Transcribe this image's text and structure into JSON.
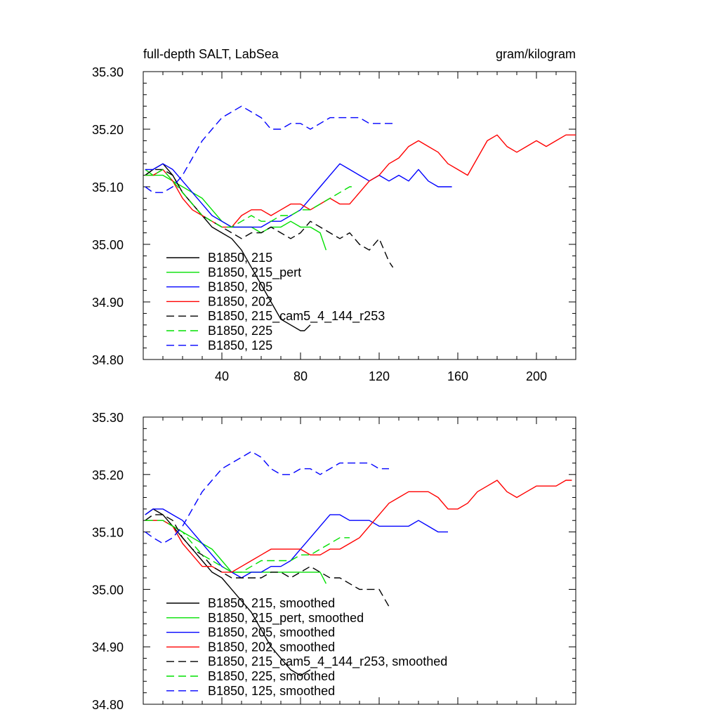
{
  "chart_data": [
    {
      "type": "line",
      "title_left": "full-depth SALT, LabSea",
      "title_right": "gram/kilogram",
      "xlim": [
        0,
        220
      ],
      "ylim": [
        34.8,
        35.3
      ],
      "x_ticks": [
        40,
        80,
        120,
        160,
        200
      ],
      "x_tick_labels": [
        "40",
        "80",
        "120",
        "160",
        "200"
      ],
      "y_ticks": [
        34.8,
        34.9,
        35.0,
        35.1,
        35.2,
        35.3
      ],
      "y_tick_labels": [
        "34.80",
        "34.90",
        "35.00",
        "35.10",
        "35.20",
        "35.30"
      ],
      "legend": "bottom-left",
      "series": [
        {
          "name": "B1850, 215",
          "color": "#000000",
          "dash": "solid",
          "x": [
            1,
            5,
            10,
            15,
            20,
            25,
            30,
            35,
            40,
            45,
            50,
            55,
            60,
            65,
            70,
            75,
            80,
            82,
            85
          ],
          "y": [
            35.12,
            35.13,
            35.14,
            35.12,
            35.09,
            35.07,
            35.05,
            35.03,
            35.02,
            35.01,
            34.99,
            34.96,
            34.93,
            34.9,
            34.87,
            34.86,
            34.85,
            34.85,
            34.86
          ]
        },
        {
          "name": "B1850, 215_pert",
          "color": "#00e000",
          "dash": "solid",
          "x": [
            1,
            5,
            10,
            15,
            20,
            25,
            30,
            35,
            40,
            45,
            50,
            55,
            60,
            65,
            70,
            75,
            80,
            85,
            90,
            93
          ],
          "y": [
            35.13,
            35.12,
            35.12,
            35.11,
            35.1,
            35.09,
            35.08,
            35.06,
            35.04,
            35.03,
            35.03,
            35.03,
            35.02,
            35.03,
            35.03,
            35.04,
            35.03,
            35.03,
            35.02,
            34.99
          ]
        },
        {
          "name": "B1850, 205",
          "color": "#0000ff",
          "dash": "solid",
          "x": [
            1,
            5,
            10,
            15,
            20,
            25,
            30,
            35,
            40,
            45,
            50,
            55,
            60,
            65,
            70,
            75,
            80,
            85,
            90,
            95,
            100,
            105,
            110,
            115,
            120,
            125,
            130,
            135,
            140,
            145,
            150,
            155,
            157
          ],
          "y": [
            35.13,
            35.13,
            35.14,
            35.13,
            35.11,
            35.09,
            35.07,
            35.05,
            35.04,
            35.03,
            35.03,
            35.03,
            35.03,
            35.04,
            35.04,
            35.05,
            35.06,
            35.08,
            35.1,
            35.12,
            35.14,
            35.13,
            35.12,
            35.11,
            35.12,
            35.11,
            35.12,
            35.11,
            35.13,
            35.11,
            35.1,
            35.1,
            35.1
          ]
        },
        {
          "name": "B1850, 202",
          "color": "#ff0000",
          "dash": "solid",
          "x": [
            1,
            5,
            10,
            15,
            20,
            25,
            30,
            35,
            40,
            45,
            50,
            55,
            60,
            65,
            70,
            75,
            80,
            85,
            90,
            95,
            100,
            105,
            110,
            115,
            120,
            125,
            130,
            135,
            140,
            145,
            150,
            155,
            160,
            165,
            170,
            175,
            180,
            185,
            190,
            195,
            200,
            205,
            210,
            215,
            220
          ],
          "y": [
            35.12,
            35.12,
            35.13,
            35.11,
            35.08,
            35.06,
            35.05,
            35.04,
            35.03,
            35.03,
            35.05,
            35.06,
            35.06,
            35.05,
            35.06,
            35.07,
            35.07,
            35.06,
            35.07,
            35.08,
            35.07,
            35.07,
            35.09,
            35.11,
            35.12,
            35.14,
            35.15,
            35.17,
            35.18,
            35.17,
            35.16,
            35.14,
            35.13,
            35.12,
            35.15,
            35.18,
            35.19,
            35.17,
            35.16,
            35.17,
            35.18,
            35.17,
            35.18,
            35.19,
            35.19
          ]
        },
        {
          "name": "B1850, 215_cam5_4_144_r253",
          "color": "#000000",
          "dash": "dashed",
          "x": [
            1,
            5,
            10,
            15,
            20,
            25,
            30,
            35,
            40,
            45,
            50,
            55,
            60,
            65,
            70,
            75,
            80,
            85,
            90,
            95,
            100,
            105,
            110,
            115,
            120,
            125,
            127
          ],
          "y": [
            35.12,
            35.13,
            35.13,
            35.12,
            35.09,
            35.07,
            35.05,
            35.04,
            35.03,
            35.02,
            35.01,
            35.02,
            35.02,
            35.03,
            35.02,
            35.01,
            35.02,
            35.04,
            35.03,
            35.02,
            35.01,
            35.02,
            35.0,
            34.99,
            35.01,
            34.97,
            34.96
          ]
        },
        {
          "name": "B1850, 225",
          "color": "#00e000",
          "dash": "dashed",
          "x": [
            1,
            5,
            10,
            15,
            20,
            25,
            30,
            35,
            40,
            45,
            50,
            55,
            60,
            65,
            70,
            75,
            80,
            85,
            90,
            95,
            100,
            105,
            108
          ],
          "y": [
            35.12,
            35.12,
            35.13,
            35.11,
            35.09,
            35.07,
            35.05,
            35.04,
            35.03,
            35.03,
            35.04,
            35.05,
            35.04,
            35.04,
            35.05,
            35.05,
            35.06,
            35.06,
            35.07,
            35.08,
            35.09,
            35.1,
            35.1
          ]
        },
        {
          "name": "B1850, 125",
          "color": "#0000ff",
          "dash": "dashed",
          "x": [
            1,
            5,
            10,
            15,
            20,
            25,
            30,
            35,
            40,
            45,
            50,
            55,
            60,
            65,
            70,
            75,
            80,
            85,
            90,
            95,
            100,
            105,
            110,
            115,
            120,
            125,
            127
          ],
          "y": [
            35.1,
            35.09,
            35.09,
            35.1,
            35.12,
            35.15,
            35.18,
            35.2,
            35.22,
            35.23,
            35.24,
            35.23,
            35.22,
            35.2,
            35.2,
            35.21,
            35.21,
            35.2,
            35.21,
            35.22,
            35.22,
            35.22,
            35.22,
            35.21,
            35.21,
            35.21,
            35.21
          ]
        }
      ]
    },
    {
      "type": "line",
      "xlim": [
        0,
        220
      ],
      "ylim": [
        34.8,
        35.3
      ],
      "x_ticks": [
        40,
        80,
        120,
        160,
        200
      ],
      "y_ticks": [
        34.8,
        34.9,
        35.0,
        35.1,
        35.2,
        35.3
      ],
      "y_tick_labels": [
        "34.80",
        "34.90",
        "35.00",
        "35.10",
        "35.20",
        "35.30"
      ],
      "legend": "bottom-left",
      "series": [
        {
          "name": "B1850, 215, smoothed",
          "color": "#000000",
          "dash": "solid",
          "x": [
            1,
            5,
            10,
            15,
            20,
            25,
            30,
            35,
            40,
            45,
            50,
            55,
            60,
            65,
            70,
            75,
            80,
            85
          ],
          "y": [
            35.13,
            35.14,
            35.13,
            35.11,
            35.09,
            35.07,
            35.05,
            35.03,
            35.02,
            35.0,
            34.98,
            34.96,
            34.93,
            34.9,
            34.88,
            34.86,
            34.85,
            34.86
          ]
        },
        {
          "name": "B1850, 215_pert, smoothed",
          "color": "#00e000",
          "dash": "solid",
          "x": [
            1,
            5,
            10,
            15,
            20,
            25,
            30,
            35,
            40,
            45,
            50,
            55,
            60,
            65,
            70,
            75,
            80,
            85,
            90,
            93
          ],
          "y": [
            35.12,
            35.12,
            35.12,
            35.11,
            35.1,
            35.09,
            35.08,
            35.07,
            35.05,
            35.03,
            35.03,
            35.03,
            35.03,
            35.03,
            35.03,
            35.03,
            35.03,
            35.03,
            35.03,
            35.01
          ]
        },
        {
          "name": "B1850, 205, smoothed",
          "color": "#0000ff",
          "dash": "solid",
          "x": [
            1,
            5,
            10,
            15,
            20,
            25,
            30,
            35,
            40,
            45,
            50,
            55,
            60,
            65,
            70,
            75,
            80,
            85,
            90,
            95,
            100,
            105,
            110,
            115,
            120,
            125,
            130,
            135,
            140,
            145,
            150,
            155
          ],
          "y": [
            35.13,
            35.14,
            35.14,
            35.13,
            35.12,
            35.1,
            35.08,
            35.06,
            35.04,
            35.03,
            35.02,
            35.03,
            35.03,
            35.04,
            35.04,
            35.05,
            35.07,
            35.09,
            35.11,
            35.13,
            35.13,
            35.12,
            35.12,
            35.12,
            35.11,
            35.11,
            35.11,
            35.11,
            35.12,
            35.11,
            35.1,
            35.1
          ]
        },
        {
          "name": "B1850, 202, smoothed",
          "color": "#ff0000",
          "dash": "solid",
          "x": [
            1,
            5,
            10,
            15,
            20,
            25,
            30,
            35,
            40,
            45,
            50,
            55,
            60,
            65,
            70,
            75,
            80,
            85,
            90,
            95,
            100,
            105,
            110,
            115,
            120,
            125,
            130,
            135,
            140,
            145,
            150,
            155,
            160,
            165,
            170,
            175,
            180,
            185,
            190,
            195,
            200,
            205,
            210,
            215,
            218
          ],
          "y": [
            35.12,
            35.12,
            35.12,
            35.11,
            35.08,
            35.06,
            35.04,
            35.04,
            35.03,
            35.03,
            35.04,
            35.05,
            35.06,
            35.07,
            35.07,
            35.07,
            35.07,
            35.06,
            35.06,
            35.07,
            35.07,
            35.08,
            35.09,
            35.11,
            35.13,
            35.15,
            35.16,
            35.17,
            35.17,
            35.17,
            35.16,
            35.14,
            35.14,
            35.15,
            35.17,
            35.18,
            35.19,
            35.17,
            35.16,
            35.17,
            35.18,
            35.18,
            35.18,
            35.19,
            35.19
          ]
        },
        {
          "name": "B1850, 215_cam5_4_144_r253, smoothed",
          "color": "#000000",
          "dash": "dashed",
          "x": [
            1,
            5,
            10,
            15,
            20,
            25,
            30,
            35,
            40,
            45,
            50,
            55,
            60,
            65,
            70,
            75,
            80,
            85,
            90,
            95,
            100,
            105,
            110,
            115,
            120,
            125
          ],
          "y": [
            35.12,
            35.13,
            35.13,
            35.12,
            35.09,
            35.07,
            35.06,
            35.04,
            35.03,
            35.02,
            35.02,
            35.02,
            35.02,
            35.03,
            35.03,
            35.02,
            35.03,
            35.04,
            35.03,
            35.02,
            35.02,
            35.01,
            35.0,
            35.0,
            35.0,
            34.97
          ]
        },
        {
          "name": "B1850, 225, smoothed",
          "color": "#00e000",
          "dash": "dashed",
          "x": [
            1,
            5,
            10,
            15,
            20,
            25,
            30,
            35,
            40,
            45,
            50,
            55,
            60,
            65,
            70,
            75,
            80,
            85,
            90,
            95,
            100,
            105
          ],
          "y": [
            35.12,
            35.12,
            35.12,
            35.11,
            35.1,
            35.08,
            35.06,
            35.05,
            35.04,
            35.03,
            35.03,
            35.04,
            35.05,
            35.05,
            35.05,
            35.05,
            35.06,
            35.06,
            35.07,
            35.08,
            35.09,
            35.09
          ]
        },
        {
          "name": "B1850, 125, smoothed",
          "color": "#0000ff",
          "dash": "dashed",
          "x": [
            1,
            5,
            10,
            15,
            20,
            25,
            30,
            35,
            40,
            45,
            50,
            55,
            60,
            65,
            70,
            75,
            80,
            85,
            90,
            95,
            100,
            105,
            110,
            115,
            120,
            125
          ],
          "y": [
            35.1,
            35.09,
            35.08,
            35.09,
            35.11,
            35.14,
            35.17,
            35.19,
            35.21,
            35.22,
            35.23,
            35.24,
            35.23,
            35.21,
            35.2,
            35.2,
            35.21,
            35.21,
            35.2,
            35.21,
            35.22,
            35.22,
            35.22,
            35.22,
            35.21,
            35.21
          ]
        }
      ]
    }
  ]
}
